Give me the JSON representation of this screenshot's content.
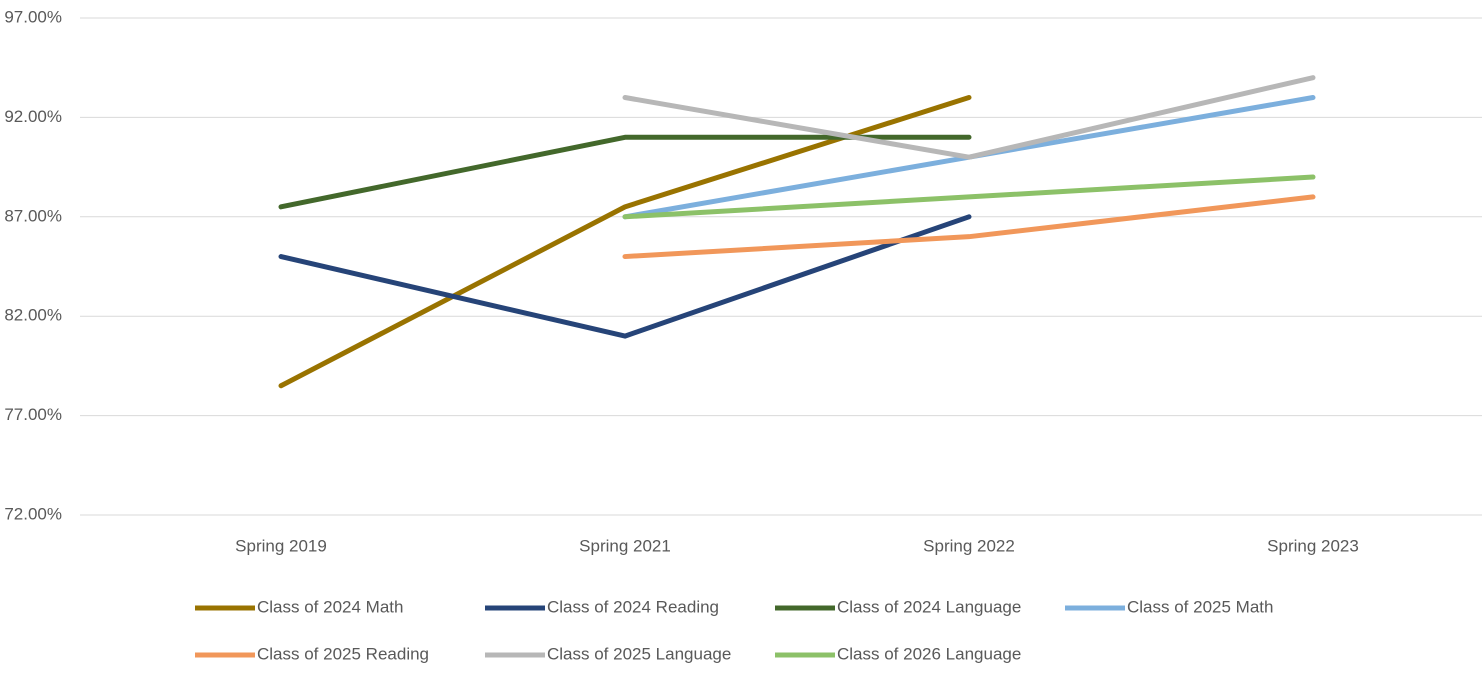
{
  "chart_data": {
    "type": "line",
    "categories": [
      "Spring 2019",
      "Spring 2021",
      "Spring 2022",
      "Spring 2023"
    ],
    "series": [
      {
        "name": "Class of 2024 Math",
        "color": "#997300",
        "values": [
          78.5,
          87.5,
          93,
          null
        ]
      },
      {
        "name": "Class of 2024 Reading",
        "color": "#264478",
        "values": [
          85,
          81,
          87,
          null
        ]
      },
      {
        "name": "Class of 2024 Language",
        "color": "#43682b",
        "values": [
          87.5,
          91,
          91,
          null
        ]
      },
      {
        "name": "Class of 2025 Math",
        "color": "#7cafdd",
        "values": [
          null,
          87,
          90,
          93
        ]
      },
      {
        "name": "Class of 2025 Reading",
        "color": "#f1975a",
        "values": [
          null,
          85,
          86,
          88
        ]
      },
      {
        "name": "Class of 2025 Language",
        "color": "#b7b7b7",
        "values": [
          null,
          93,
          90,
          94
        ]
      },
      {
        "name": "Class of 2026 Language",
        "color": "#8cc168",
        "values": [
          null,
          87,
          88,
          89
        ]
      }
    ],
    "ylim": [
      72,
      97
    ],
    "yticks": [
      {
        "value": 72,
        "label": "72.00%"
      },
      {
        "value": 77,
        "label": "77.00%"
      },
      {
        "value": 82,
        "label": "82.00%"
      },
      {
        "value": 87,
        "label": "87.00%"
      },
      {
        "value": 92,
        "label": "92.00%"
      },
      {
        "value": 97,
        "label": "97.00%"
      }
    ],
    "grid": true,
    "legend": "bottom"
  }
}
